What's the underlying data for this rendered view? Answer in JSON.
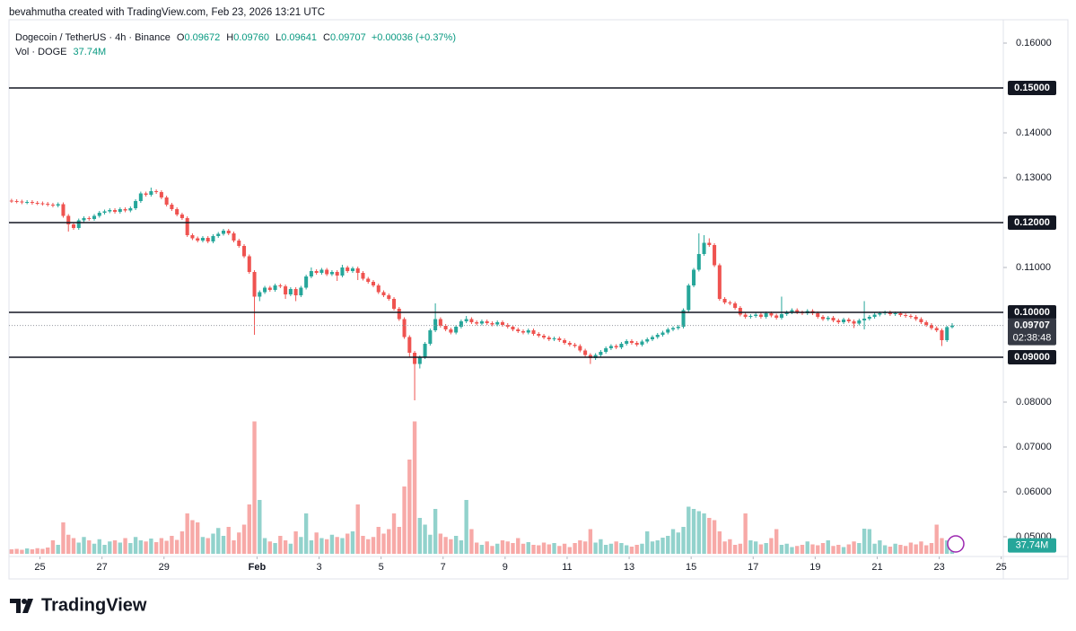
{
  "header": {
    "attribution": "bevahmutha created with TradingView.com, Feb 23, 2026 13:21 UTC"
  },
  "chart_data": {
    "type": "candlestick",
    "symbol": "Dogecoin / TetherUS · 4h · Binance",
    "legend": [
      {
        "key": "O",
        "value": "0.09672"
      },
      {
        "key": "H",
        "value": "0.09760"
      },
      {
        "key": "L",
        "value": "0.09641"
      },
      {
        "key": "C",
        "value": "0.09707"
      }
    ],
    "change": "+0.00036 (+0.37%)",
    "volume_name": "Vol · DOGE",
    "volume_label": "37.74M",
    "up_color": "#26a69a",
    "down_color": "#ef5350",
    "up_volume_color": "#92d2cc",
    "down_volume_color": "#f7a9a7",
    "xlim": [
      0,
      192.4
    ],
    "xticks": [
      {
        "value": 6,
        "label": "25"
      },
      {
        "value": 18,
        "label": "27"
      },
      {
        "value": 30,
        "label": "29"
      },
      {
        "value": 48,
        "label": "Feb"
      },
      {
        "value": 60,
        "label": "3"
      },
      {
        "value": 72,
        "label": "5"
      },
      {
        "value": 84,
        "label": "7"
      },
      {
        "value": 96,
        "label": "9"
      },
      {
        "value": 108,
        "label": "11"
      },
      {
        "value": 120,
        "label": "13"
      },
      {
        "value": 132,
        "label": "15"
      },
      {
        "value": 144,
        "label": "17"
      },
      {
        "value": 156,
        "label": "19"
      },
      {
        "value": 168,
        "label": "21"
      },
      {
        "value": 180,
        "label": "23"
      },
      {
        "value": 192,
        "label": "25"
      }
    ],
    "ylim": [
      0.0456,
      0.1656
    ],
    "yticks": [
      {
        "value": 0.16,
        "label": "0.16000"
      },
      {
        "value": 0.14,
        "label": "0.14000"
      },
      {
        "value": 0.13,
        "label": "0.13000"
      },
      {
        "value": 0.11,
        "label": "0.11000"
      },
      {
        "value": 0.08,
        "label": "0.08000"
      },
      {
        "value": 0.07,
        "label": "0.07000"
      },
      {
        "value": 0.06,
        "label": "0.06000"
      },
      {
        "value": 0.05,
        "label": "0.05000"
      }
    ],
    "levels": [
      {
        "value": 0.15,
        "label": "0.15000"
      },
      {
        "value": 0.12,
        "label": "0.12000"
      },
      {
        "value": 0.1,
        "label": "0.10000"
      },
      {
        "value": 0.09,
        "label": "0.09000"
      }
    ],
    "last_price": {
      "value": 0.09707,
      "label": "0.09707"
    },
    "countdown": "02:38:48",
    "vlim": [
      0,
      600
    ],
    "ohlc": [
      [
        0.1249,
        0.1253,
        0.1244,
        0.1248
      ],
      [
        0.1248,
        0.1252,
        0.1243,
        0.1247
      ],
      [
        0.1247,
        0.1251,
        0.1241,
        0.1245
      ],
      [
        0.1245,
        0.125,
        0.1241,
        0.1246
      ],
      [
        0.1246,
        0.125,
        0.124,
        0.1244
      ],
      [
        0.1244,
        0.1248,
        0.1239,
        0.1243
      ],
      [
        0.1243,
        0.1247,
        0.1238,
        0.1242
      ],
      [
        0.1242,
        0.1246,
        0.1236,
        0.124
      ],
      [
        0.124,
        0.1244,
        0.1234,
        0.1238
      ],
      [
        0.1238,
        0.1245,
        0.1234,
        0.1241
      ],
      [
        0.1241,
        0.1245,
        0.1211,
        0.1215
      ],
      [
        0.1215,
        0.1219,
        0.118,
        0.1196
      ],
      [
        0.1196,
        0.12,
        0.1184,
        0.1188
      ],
      [
        0.1188,
        0.1209,
        0.1184,
        0.1205
      ],
      [
        0.1205,
        0.1214,
        0.1201,
        0.121
      ],
      [
        0.121,
        0.1214,
        0.1204,
        0.1208
      ],
      [
        0.1208,
        0.1219,
        0.1204,
        0.1215
      ],
      [
        0.1215,
        0.1226,
        0.1211,
        0.1222
      ],
      [
        0.1222,
        0.1229,
        0.1218,
        0.1225
      ],
      [
        0.1225,
        0.1232,
        0.1221,
        0.1228
      ],
      [
        0.1228,
        0.1232,
        0.122,
        0.1224
      ],
      [
        0.1224,
        0.1234,
        0.122,
        0.123
      ],
      [
        0.123,
        0.1234,
        0.1223,
        0.1227
      ],
      [
        0.1227,
        0.1236,
        0.1223,
        0.1232
      ],
      [
        0.1232,
        0.1252,
        0.1228,
        0.1248
      ],
      [
        0.1248,
        0.1269,
        0.1244,
        0.1265
      ],
      [
        0.1265,
        0.1269,
        0.1258,
        0.1262
      ],
      [
        0.1262,
        0.1278,
        0.1258,
        0.127
      ],
      [
        0.127,
        0.1274,
        0.1264,
        0.1268
      ],
      [
        0.1268,
        0.1272,
        0.1252,
        0.1256
      ],
      [
        0.1256,
        0.126,
        0.1236,
        0.124
      ],
      [
        0.124,
        0.1244,
        0.1226,
        0.123
      ],
      [
        0.123,
        0.1234,
        0.1214,
        0.1218
      ],
      [
        0.1218,
        0.1222,
        0.1206,
        0.121
      ],
      [
        0.121,
        0.1214,
        0.1168,
        0.1172
      ],
      [
        0.1172,
        0.1176,
        0.1161,
        0.1165
      ],
      [
        0.1165,
        0.1169,
        0.1156,
        0.116
      ],
      [
        0.116,
        0.117,
        0.1156,
        0.1166
      ],
      [
        0.1166,
        0.117,
        0.1154,
        0.1158
      ],
      [
        0.1158,
        0.1174,
        0.1154,
        0.117
      ],
      [
        0.117,
        0.1179,
        0.1166,
        0.1175
      ],
      [
        0.1175,
        0.1186,
        0.1171,
        0.1182
      ],
      [
        0.1182,
        0.1186,
        0.1172,
        0.1176
      ],
      [
        0.1176,
        0.118,
        0.1156,
        0.116
      ],
      [
        0.116,
        0.1164,
        0.1144,
        0.1148
      ],
      [
        0.1148,
        0.1152,
        0.1121,
        0.1125
      ],
      [
        0.1125,
        0.1129,
        0.1086,
        0.109
      ],
      [
        0.109,
        0.1094,
        0.095,
        0.1035
      ],
      [
        0.1035,
        0.1049,
        0.1025,
        0.1045
      ],
      [
        0.1045,
        0.1059,
        0.1041,
        0.1055
      ],
      [
        0.1055,
        0.1059,
        0.1046,
        0.105
      ],
      [
        0.105,
        0.1064,
        0.1046,
        0.106
      ],
      [
        0.106,
        0.1064,
        0.1054,
        0.1058
      ],
      [
        0.1058,
        0.1062,
        0.103,
        0.104
      ],
      [
        0.104,
        0.1056,
        0.1036,
        0.1052
      ],
      [
        0.1052,
        0.1056,
        0.1025,
        0.1038
      ],
      [
        0.1038,
        0.1059,
        0.1034,
        0.1055
      ],
      [
        0.1055,
        0.1084,
        0.1051,
        0.108
      ],
      [
        0.108,
        0.11,
        0.1076,
        0.1092
      ],
      [
        0.1092,
        0.1096,
        0.1084,
        0.1088
      ],
      [
        0.1088,
        0.1099,
        0.1084,
        0.1095
      ],
      [
        0.1095,
        0.1099,
        0.1081,
        0.1085
      ],
      [
        0.1085,
        0.1094,
        0.1081,
        0.109
      ],
      [
        0.109,
        0.1094,
        0.107,
        0.1082
      ],
      [
        0.1082,
        0.1106,
        0.1078,
        0.11
      ],
      [
        0.11,
        0.1104,
        0.1088,
        0.1092
      ],
      [
        0.1092,
        0.1102,
        0.1088,
        0.1098
      ],
      [
        0.1098,
        0.1102,
        0.1072,
        0.1088
      ],
      [
        0.1088,
        0.1092,
        0.1071,
        0.1075
      ],
      [
        0.1075,
        0.1079,
        0.1064,
        0.1068
      ],
      [
        0.1068,
        0.1072,
        0.1056,
        0.106
      ],
      [
        0.106,
        0.1064,
        0.1041,
        0.1045
      ],
      [
        0.1045,
        0.1049,
        0.1034,
        0.1038
      ],
      [
        0.1038,
        0.1042,
        0.1026,
        0.103
      ],
      [
        0.103,
        0.1034,
        0.1004,
        0.1008
      ],
      [
        0.1008,
        0.1012,
        0.0981,
        0.0985
      ],
      [
        0.0985,
        0.0989,
        0.0941,
        0.0945
      ],
      [
        0.0945,
        0.0949,
        0.09,
        0.091
      ],
      [
        0.091,
        0.0914,
        0.0804,
        0.0885
      ],
      [
        0.0885,
        0.0904,
        0.0875,
        0.09
      ],
      [
        0.09,
        0.0934,
        0.0896,
        0.093
      ],
      [
        0.093,
        0.0964,
        0.0926,
        0.096
      ],
      [
        0.096,
        0.102,
        0.0956,
        0.0985
      ],
      [
        0.0985,
        0.0989,
        0.0966,
        0.097
      ],
      [
        0.097,
        0.0974,
        0.0958,
        0.0962
      ],
      [
        0.0962,
        0.0966,
        0.0951,
        0.0955
      ],
      [
        0.0955,
        0.0972,
        0.0951,
        0.0968
      ],
      [
        0.0968,
        0.0984,
        0.0964,
        0.098
      ],
      [
        0.098,
        0.0992,
        0.0976,
        0.0985
      ],
      [
        0.0985,
        0.0989,
        0.0974,
        0.0978
      ],
      [
        0.0978,
        0.0982,
        0.0971,
        0.0975
      ],
      [
        0.0975,
        0.0984,
        0.0971,
        0.098
      ],
      [
        0.098,
        0.0984,
        0.0972,
        0.0976
      ],
      [
        0.0976,
        0.098,
        0.0969,
        0.0973
      ],
      [
        0.0973,
        0.0982,
        0.0969,
        0.0978
      ],
      [
        0.0978,
        0.0982,
        0.0968,
        0.0972
      ],
      [
        0.0972,
        0.0976,
        0.0964,
        0.0968
      ],
      [
        0.0968,
        0.0972,
        0.0958,
        0.0962
      ],
      [
        0.0962,
        0.0966,
        0.0954,
        0.0958
      ],
      [
        0.0958,
        0.0962,
        0.0951,
        0.0955
      ],
      [
        0.0955,
        0.0964,
        0.0951,
        0.096
      ],
      [
        0.096,
        0.0964,
        0.0948,
        0.0952
      ],
      [
        0.0952,
        0.0956,
        0.0944,
        0.0948
      ],
      [
        0.0948,
        0.0952,
        0.094,
        0.0944
      ],
      [
        0.0944,
        0.0948,
        0.0936,
        0.094
      ],
      [
        0.094,
        0.0946,
        0.0936,
        0.0942
      ],
      [
        0.0942,
        0.0946,
        0.0934,
        0.0938
      ],
      [
        0.0938,
        0.0942,
        0.0928,
        0.0932
      ],
      [
        0.0932,
        0.0936,
        0.0924,
        0.0928
      ],
      [
        0.0928,
        0.0932,
        0.0921,
        0.0925
      ],
      [
        0.0925,
        0.0929,
        0.0911,
        0.0915
      ],
      [
        0.0915,
        0.0919,
        0.09,
        0.0905
      ],
      [
        0.0905,
        0.0909,
        0.0885,
        0.0898
      ],
      [
        0.0898,
        0.0909,
        0.0894,
        0.0905
      ],
      [
        0.0905,
        0.0916,
        0.0901,
        0.0912
      ],
      [
        0.0912,
        0.0924,
        0.0908,
        0.092
      ],
      [
        0.092,
        0.0929,
        0.0916,
        0.0925
      ],
      [
        0.0925,
        0.0929,
        0.0918,
        0.0922
      ],
      [
        0.0922,
        0.0934,
        0.0918,
        0.093
      ],
      [
        0.093,
        0.094,
        0.0926,
        0.0936
      ],
      [
        0.0936,
        0.094,
        0.0928,
        0.0932
      ],
      [
        0.0932,
        0.0936,
        0.0924,
        0.0928
      ],
      [
        0.0928,
        0.0939,
        0.0924,
        0.0935
      ],
      [
        0.0935,
        0.0944,
        0.0931,
        0.094
      ],
      [
        0.094,
        0.0949,
        0.0936,
        0.0945
      ],
      [
        0.0945,
        0.0954,
        0.0941,
        0.095
      ],
      [
        0.095,
        0.0959,
        0.0946,
        0.0955
      ],
      [
        0.0955,
        0.0966,
        0.0951,
        0.0962
      ],
      [
        0.0962,
        0.0969,
        0.0958,
        0.0965
      ],
      [
        0.0965,
        0.0972,
        0.0961,
        0.0968
      ],
      [
        0.0968,
        0.1009,
        0.0964,
        0.1005
      ],
      [
        0.1005,
        0.1064,
        0.1001,
        0.106
      ],
      [
        0.106,
        0.1099,
        0.1056,
        0.1095
      ],
      [
        0.1095,
        0.1176,
        0.1091,
        0.113
      ],
      [
        0.113,
        0.1172,
        0.1126,
        0.1155
      ],
      [
        0.1155,
        0.1165,
        0.1146,
        0.115
      ],
      [
        0.115,
        0.1154,
        0.1101,
        0.1105
      ],
      [
        0.1105,
        0.1109,
        0.1026,
        0.103
      ],
      [
        0.103,
        0.1034,
        0.1018,
        0.1022
      ],
      [
        0.1022,
        0.1026,
        0.1016,
        0.102
      ],
      [
        0.102,
        0.1024,
        0.1006,
        0.101
      ],
      [
        0.101,
        0.1014,
        0.0991,
        0.0995
      ],
      [
        0.0995,
        0.0999,
        0.0986,
        0.099
      ],
      [
        0.099,
        0.0996,
        0.0986,
        0.0992
      ],
      [
        0.0992,
        0.0999,
        0.0988,
        0.0995
      ],
      [
        0.0995,
        0.0999,
        0.0986,
        0.099
      ],
      [
        0.099,
        0.1002,
        0.0986,
        0.0998
      ],
      [
        0.0998,
        0.1002,
        0.0989,
        0.0993
      ],
      [
        0.0993,
        0.0997,
        0.0984,
        0.0988
      ],
      [
        0.0988,
        0.1035,
        0.0984,
        0.0996
      ],
      [
        0.0996,
        0.1004,
        0.0992,
        0.1
      ],
      [
        0.1,
        0.1009,
        0.0996,
        0.1005
      ],
      [
        0.1005,
        0.1009,
        0.0996,
        0.1
      ],
      [
        0.1,
        0.1004,
        0.0994,
        0.0998
      ],
      [
        0.0998,
        0.1007,
        0.0994,
        0.1003
      ],
      [
        0.1003,
        0.1007,
        0.0994,
        0.0998
      ],
      [
        0.0998,
        0.1002,
        0.0986,
        0.099
      ],
      [
        0.099,
        0.0994,
        0.0981,
        0.0985
      ],
      [
        0.0985,
        0.0992,
        0.0981,
        0.0988
      ],
      [
        0.0988,
        0.0992,
        0.0978,
        0.0982
      ],
      [
        0.0982,
        0.0986,
        0.0974,
        0.0978
      ],
      [
        0.0978,
        0.0988,
        0.0974,
        0.0984
      ],
      [
        0.0984,
        0.0988,
        0.0976,
        0.098
      ],
      [
        0.098,
        0.0984,
        0.0965,
        0.0975
      ],
      [
        0.0975,
        0.0986,
        0.0971,
        0.0982
      ],
      [
        0.0982,
        0.1025,
        0.0962,
        0.0986
      ],
      [
        0.0986,
        0.0994,
        0.0982,
        0.099
      ],
      [
        0.099,
        0.0999,
        0.0986,
        0.0995
      ],
      [
        0.0995,
        0.1002,
        0.0991,
        0.0998
      ],
      [
        0.0998,
        0.1004,
        0.0994,
        0.1
      ],
      [
        0.1,
        0.1004,
        0.0992,
        0.0996
      ],
      [
        0.0996,
        0.1002,
        0.0992,
        0.0998
      ],
      [
        0.0998,
        0.1002,
        0.099,
        0.0994
      ],
      [
        0.0994,
        0.0998,
        0.0988,
        0.0992
      ],
      [
        0.0992,
        0.0996,
        0.0986,
        0.099
      ],
      [
        0.099,
        0.0994,
        0.0981,
        0.0985
      ],
      [
        0.0985,
        0.0989,
        0.0974,
        0.0978
      ],
      [
        0.0978,
        0.0982,
        0.0968,
        0.0972
      ],
      [
        0.0972,
        0.0976,
        0.0961,
        0.0965
      ],
      [
        0.0965,
        0.0969,
        0.0956,
        0.096
      ],
      [
        0.096,
        0.0964,
        0.0925,
        0.0938
      ],
      [
        0.0938,
        0.097,
        0.0934,
        0.09672
      ],
      [
        0.09672,
        0.0976,
        0.09641,
        0.09707
      ]
    ],
    "volume": [
      20,
      22,
      18,
      24,
      20,
      25,
      22,
      28,
      60,
      40,
      140,
      85,
      70,
      50,
      75,
      60,
      45,
      65,
      40,
      55,
      60,
      50,
      70,
      48,
      75,
      60,
      55,
      68,
      52,
      70,
      58,
      80,
      62,
      100,
      180,
      150,
      140,
      75,
      70,
      90,
      115,
      80,
      120,
      60,
      95,
      130,
      220,
      590,
      240,
      70,
      55,
      48,
      80,
      60,
      45,
      100,
      75,
      180,
      60,
      95,
      70,
      65,
      85,
      75,
      70,
      90,
      100,
      220,
      80,
      65,
      75,
      120,
      90,
      110,
      180,
      120,
      300,
      420,
      590,
      160,
      130,
      85,
      200,
      90,
      75,
      65,
      80,
      60,
      240,
      110,
      50,
      40,
      55,
      35,
      45,
      60,
      55,
      48,
      70,
      45,
      52,
      40,
      38,
      50,
      42,
      48,
      35,
      45,
      30,
      48,
      60,
      55,
      110,
      50,
      65,
      40,
      45,
      55,
      48,
      38,
      32,
      40,
      45,
      100,
      55,
      60,
      72,
      80,
      110,
      95,
      120,
      210,
      200,
      190,
      180,
      160,
      150,
      100,
      55,
      65,
      40,
      45,
      180,
      60,
      55,
      42,
      48,
      70,
      110,
      40,
      45,
      30,
      35,
      40,
      55,
      42,
      38,
      48,
      60,
      35,
      40,
      30,
      42,
      55,
      48,
      112,
      110,
      45,
      60,
      38,
      32,
      45,
      40,
      35,
      50,
      42,
      55,
      38,
      48,
      130,
      70,
      60,
      37.74
    ]
  },
  "footer": {
    "brand": "TradingView"
  }
}
